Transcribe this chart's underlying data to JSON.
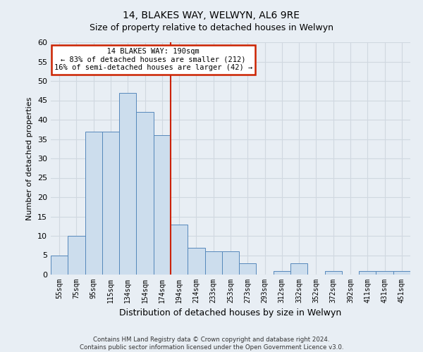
{
  "title": "14, BLAKES WAY, WELWYN, AL6 9RE",
  "subtitle": "Size of property relative to detached houses in Welwyn",
  "xlabel": "Distribution of detached houses by size in Welwyn",
  "ylabel": "Number of detached properties",
  "bar_labels": [
    "55sqm",
    "75sqm",
    "95sqm",
    "115sqm",
    "134sqm",
    "154sqm",
    "174sqm",
    "194sqm",
    "214sqm",
    "233sqm",
    "253sqm",
    "273sqm",
    "293sqm",
    "312sqm",
    "332sqm",
    "352sqm",
    "372sqm",
    "392sqm",
    "411sqm",
    "431sqm",
    "451sqm"
  ],
  "bar_heights": [
    5,
    10,
    37,
    37,
    47,
    42,
    36,
    13,
    7,
    6,
    6,
    3,
    0,
    1,
    3,
    0,
    1,
    0,
    1,
    1,
    1
  ],
  "bar_color": "#ccdded",
  "bar_edge_color": "#5588bb",
  "property_line_index": 6.5,
  "property_line_label": "14 BLAKES WAY: 190sqm",
  "annotation_line1": "← 83% of detached houses are smaller (212)",
  "annotation_line2": "16% of semi-detached houses are larger (42) →",
  "annotation_box_facecolor": "#ffffff",
  "annotation_box_edgecolor": "#cc2200",
  "red_line_color": "#cc2200",
  "ylim": [
    0,
    60
  ],
  "yticks": [
    0,
    5,
    10,
    15,
    20,
    25,
    30,
    35,
    40,
    45,
    50,
    55,
    60
  ],
  "footer_line1": "Contains HM Land Registry data © Crown copyright and database right 2024.",
  "footer_line2": "Contains public sector information licensed under the Open Government Licence v3.0.",
  "bg_color": "#e8eef4",
  "plot_bg_color": "#e8eef4",
  "grid_color": "#d0d8e0",
  "title_fontsize": 10,
  "subtitle_fontsize": 9
}
